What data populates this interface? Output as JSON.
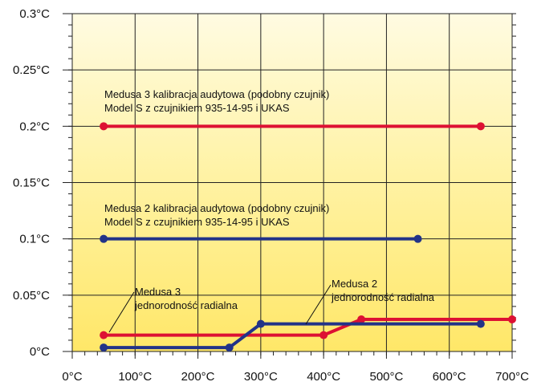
{
  "chart_data": {
    "type": "line",
    "xlim": [
      0,
      700
    ],
    "ylim": [
      0,
      0.3
    ],
    "grid": true,
    "background": "#ffef80",
    "x_tick_labels": [
      "0°C",
      "100°C",
      "200°C",
      "300°C",
      "400°C",
      "500°C",
      "600°C",
      "700°C"
    ],
    "y_tick_labels": [
      "0°C",
      "0.05°C",
      "0.1°C",
      "0.15°C",
      "0.2°C",
      "0.25°C",
      "0.3°C"
    ],
    "series": [
      {
        "color": "#dd1133",
        "points": [
          [
            50,
            0.2
          ],
          [
            650,
            0.2
          ]
        ]
      },
      {
        "color": "#223388",
        "points": [
          [
            50,
            0.1
          ],
          [
            550,
            0.1
          ]
        ]
      },
      {
        "color": "#dd1133",
        "points": [
          [
            50,
            0.0145
          ],
          [
            400,
            0.0145
          ],
          [
            460,
            0.0285
          ],
          [
            700,
            0.0285
          ]
        ]
      },
      {
        "color": "#223388",
        "points": [
          [
            50,
            0.0035
          ],
          [
            250,
            0.0035
          ],
          [
            300,
            0.0245
          ],
          [
            650,
            0.0245
          ]
        ]
      }
    ],
    "annotations": [
      {
        "lines": [
          "Medusa 3 kalibracja audytowa (podobny czujnik)",
          "Model S z czujnikiem 935-14-95 i UKAS"
        ]
      },
      {
        "lines": [
          "Medusa 2 kalibracja audytowa (podobny czujnik)",
          "Model S z czujnikiem 935-14-95 i UKAS"
        ]
      },
      {
        "lines": [
          "Medusa 3",
          "jednorodność radialna"
        ]
      },
      {
        "lines": [
          "Medusa 2",
          "jednorodność radialna"
        ]
      }
    ]
  }
}
